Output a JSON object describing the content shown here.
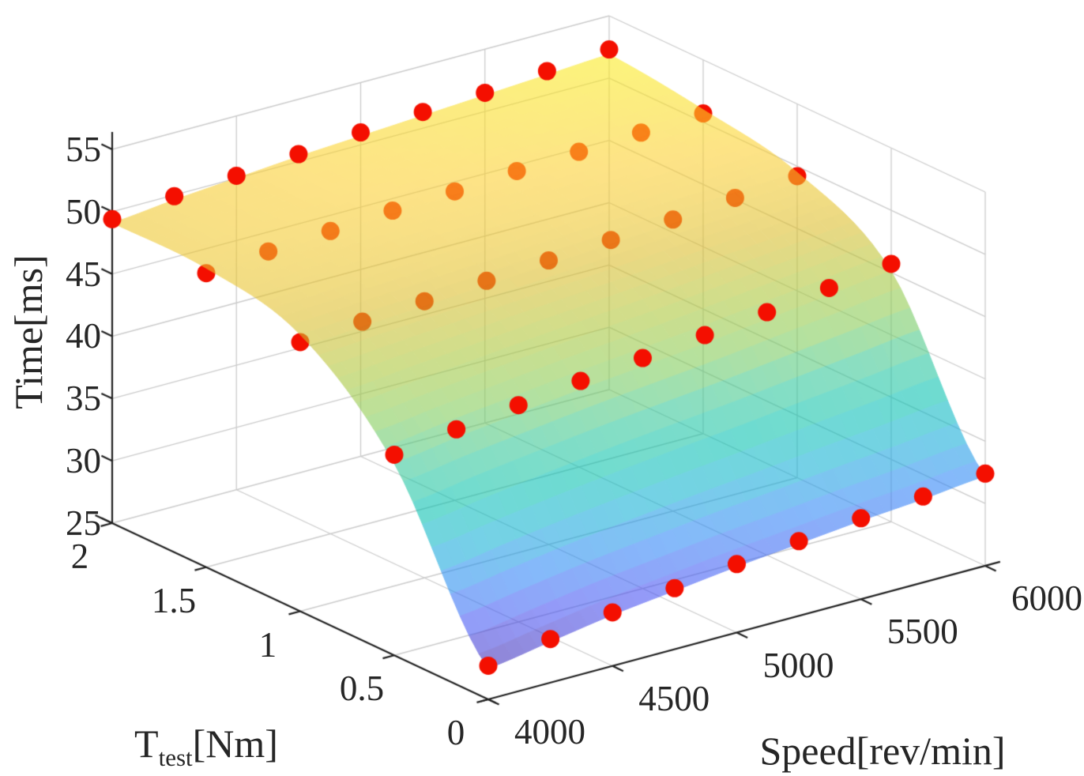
{
  "figure": {
    "background": "#ffffff",
    "text_color": "#262626"
  },
  "axes": {
    "zlabel": "Time[ms]",
    "xlabel": "Speed[rev/min]",
    "ylabel_main": "T",
    "ylabel_sub": "test",
    "ylabel_rest": "[Nm]",
    "z_ticks": [
      55,
      50,
      45,
      40,
      35,
      30,
      25
    ],
    "x_ticks": [
      4000,
      4500,
      5000,
      5500,
      6000
    ],
    "y_ticks": [
      2,
      1.5,
      1,
      0.5,
      0
    ],
    "z_range": [
      25,
      55
    ],
    "x_range": [
      4000,
      6000
    ],
    "y_range": [
      0,
      2
    ]
  },
  "chart_data": {
    "type": "surface+scatter3d",
    "title": "",
    "xlabel": "Speed[rev/min]",
    "ylabel": "Ttest[Nm]",
    "zlabel": "Time[ms]",
    "speeds": [
      4000,
      4250,
      4500,
      4750,
      5000,
      5250,
      5500,
      5750,
      6000
    ],
    "torques": [
      0,
      0.5,
      1,
      1.5,
      2
    ],
    "scatter_times": [
      [
        27.7,
        28.5,
        29.3,
        29.9,
        30.5,
        31.0,
        31.5,
        31.9,
        32.4
      ],
      [
        41.1,
        41.8,
        42.4,
        43.0,
        43.5,
        44.0,
        44.5,
        45.1,
        45.7
      ],
      [
        46.6,
        46.9,
        47.2,
        47.5,
        47.8,
        48.1,
        48.4,
        48.8,
        49.2
      ],
      [
        48.6,
        49.0,
        49.3,
        49.6,
        49.8,
        50.1,
        50.3,
        50.5,
        50.7
      ],
      [
        49.4,
        49.9,
        50.2,
        50.6,
        51.0,
        51.3,
        51.5,
        51.9,
        52.3
      ]
    ],
    "fit_surface_times": [
      [
        27.5,
        28.3,
        29.1,
        29.7,
        30.3,
        30.8,
        31.3,
        31.7,
        32.2
      ],
      [
        40.4,
        41.1,
        41.7,
        42.3,
        42.8,
        43.3,
        43.9,
        44.5,
        45.1
      ],
      [
        47.2,
        47.5,
        47.8,
        48.1,
        48.4,
        48.7,
        49.0,
        49.2,
        49.5
      ],
      [
        49.0,
        49.4,
        49.7,
        50.0,
        50.2,
        50.4,
        50.6,
        50.8,
        51.0
      ],
      [
        49.1,
        49.6,
        50.0,
        50.4,
        50.7,
        51.0,
        51.3,
        51.6,
        51.9
      ]
    ],
    "scatter_color": "#f40f00",
    "surface_alpha": 0.58,
    "surface_colormap_parula": [
      "#3e26a8",
      "#4852f4",
      "#2e87f7",
      "#12b1d6",
      "#06c2b0",
      "#37c897",
      "#81cc59",
      "#abc739",
      "#dcbd29",
      "#fccf30",
      "#f9fb15"
    ],
    "color_range": [
      27.2,
      52.8
    ],
    "grid_color": "#cccccc",
    "axis_color": "#222222",
    "legend": null,
    "grid": true
  }
}
